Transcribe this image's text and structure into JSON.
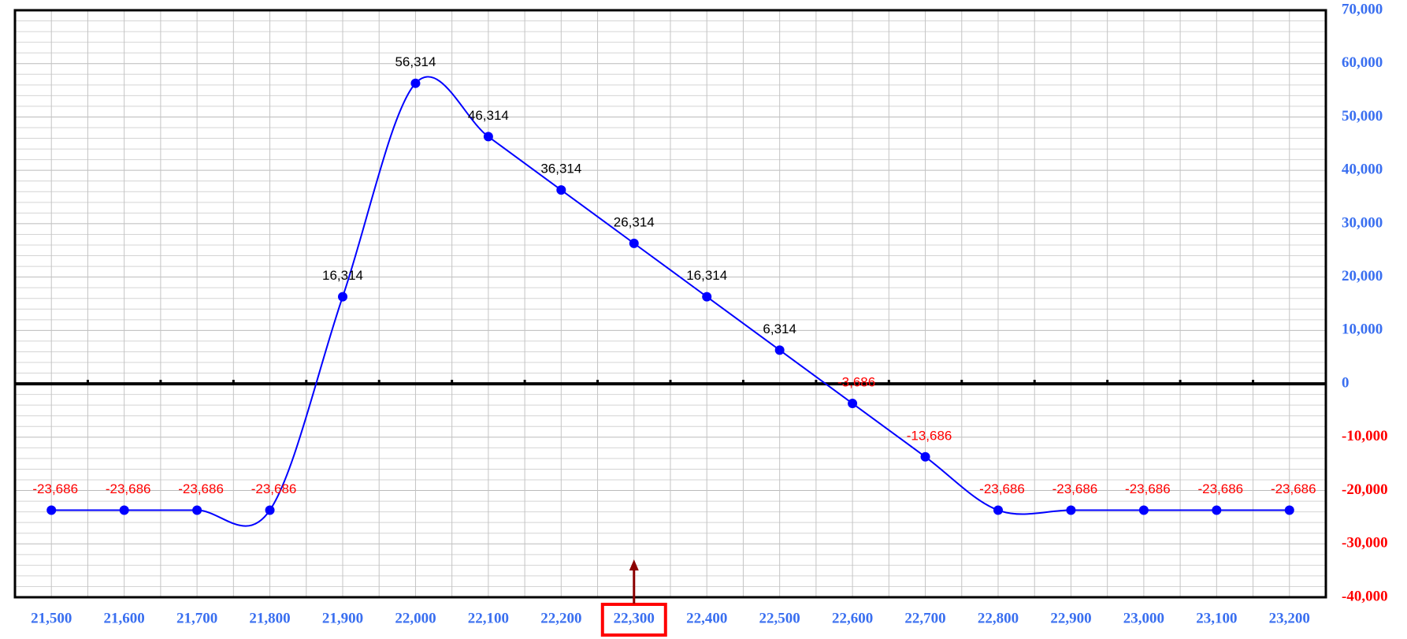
{
  "chart_data": {
    "type": "line",
    "x": [
      21500,
      21600,
      21700,
      21800,
      21900,
      22000,
      22100,
      22200,
      22300,
      22400,
      22500,
      22600,
      22700,
      22800,
      22900,
      23000,
      23100,
      23200
    ],
    "series": [
      {
        "color": "#0000ff",
        "values": [
          -23686,
          -23686,
          -23686,
          -23686,
          16314,
          56314,
          46314,
          36314,
          26314,
          16314,
          6314,
          -3686,
          -13686,
          -23686,
          -23686,
          -23686,
          -23686,
          -23686
        ],
        "value_labels": [
          "-23,686",
          "-23,686",
          "-23,686",
          "-23,686",
          "16,314",
          "56,314",
          "46,314",
          "36,314",
          "26,314",
          "16,314",
          "6,314",
          "-3,686",
          "-13,686",
          "-23,686",
          "-23,686",
          "-23,686",
          "-23,686",
          "-23,686"
        ]
      }
    ],
    "xlim": [
      21450,
      23250
    ],
    "xticks": [
      {
        "value": 21500,
        "label": "21,500"
      },
      {
        "value": 21600,
        "label": "21,600"
      },
      {
        "value": 21700,
        "label": "21,700"
      },
      {
        "value": 21800,
        "label": "21,800"
      },
      {
        "value": 21900,
        "label": "21,900"
      },
      {
        "value": 22000,
        "label": "22,000"
      },
      {
        "value": 22100,
        "label": "22,100"
      },
      {
        "value": 22200,
        "label": "22,200"
      },
      {
        "value": 22300,
        "label": "22,300"
      },
      {
        "value": 22400,
        "label": "22,400"
      },
      {
        "value": 22500,
        "label": "22,500"
      },
      {
        "value": 22600,
        "label": "22,600"
      },
      {
        "value": 22700,
        "label": "22,700"
      },
      {
        "value": 22800,
        "label": "22,800"
      },
      {
        "value": 22900,
        "label": "22,900"
      },
      {
        "value": 23000,
        "label": "23,000"
      },
      {
        "value": 23100,
        "label": "23,100"
      },
      {
        "value": 23200,
        "label": "23,200"
      }
    ],
    "ylim": [
      -40000,
      70000
    ],
    "yticks": [
      {
        "value": -40000,
        "label": "-40,000"
      },
      {
        "value": -30000,
        "label": "-30,000"
      },
      {
        "value": -20000,
        "label": "-20,000"
      },
      {
        "value": -10000,
        "label": "-10,000"
      },
      0,
      {
        "value": 10000,
        "label": "10,000"
      },
      {
        "value": 20000,
        "label": "20,000"
      },
      {
        "value": 30000,
        "label": "30,000"
      },
      {
        "value": 40000,
        "label": "40,000"
      },
      {
        "value": 50000,
        "label": "50,000"
      },
      {
        "value": 60000,
        "label": "60,000"
      },
      {
        "value": 70000,
        "label": "70,000"
      }
    ],
    "y_axis_side": "right",
    "grid": true,
    "highlight": 22300
  }
}
